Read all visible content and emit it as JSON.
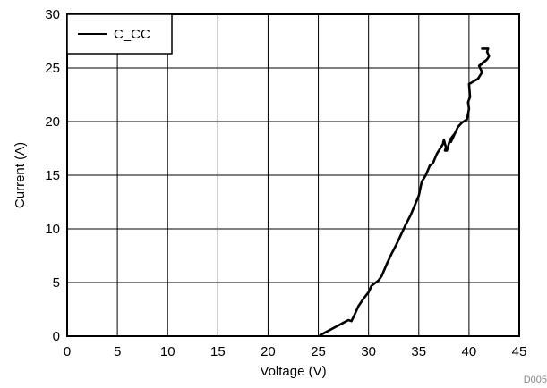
{
  "chart_data": {
    "type": "line",
    "xlabel": "Voltage (V)",
    "ylabel": "Current (A)",
    "xlim": [
      0,
      45
    ],
    "ylim": [
      0,
      30
    ],
    "xticks": [
      0,
      5,
      10,
      15,
      20,
      25,
      30,
      35,
      40,
      45
    ],
    "yticks": [
      0,
      5,
      10,
      15,
      20,
      25,
      30
    ],
    "grid": true,
    "legend_position": "top-left",
    "figure_id": "D005",
    "series": [
      {
        "name": "C_CC",
        "color": "#000000",
        "x": [
          25.2,
          26.0,
          27.0,
          28.0,
          28.3,
          28.6,
          29.0,
          29.5,
          30.0,
          30.3,
          31.0,
          31.3,
          31.8,
          32.3,
          32.8,
          33.3,
          33.7,
          34.2,
          34.6,
          35.0,
          35.3,
          35.7,
          36.1,
          36.4,
          36.8,
          37.2,
          37.4,
          37.5,
          37.7,
          37.6,
          37.8,
          38.1,
          38.5,
          38.2,
          38.9,
          39.3,
          39.8,
          40.0,
          39.9,
          40.1,
          40.0,
          40.2,
          40.9,
          41.3,
          41.0,
          41.5,
          41.2,
          41.8,
          42.0,
          41.8,
          41.9,
          41.3
        ],
        "y": [
          0.1,
          0.5,
          1.0,
          1.5,
          1.4,
          2.0,
          2.8,
          3.5,
          4.1,
          4.7,
          5.2,
          5.6,
          6.7,
          7.7,
          8.6,
          9.6,
          10.4,
          11.3,
          12.2,
          13.1,
          14.4,
          15.0,
          15.9,
          16.1,
          17.0,
          17.6,
          17.9,
          18.3,
          17.6,
          17.3,
          17.3,
          18.3,
          18.8,
          18.1,
          19.5,
          19.9,
          20.2,
          21.2,
          21.8,
          22.3,
          23.5,
          23.6,
          24.0,
          24.6,
          25.2,
          25.6,
          25.3,
          25.8,
          26.1,
          26.5,
          26.8,
          26.8
        ]
      }
    ]
  }
}
